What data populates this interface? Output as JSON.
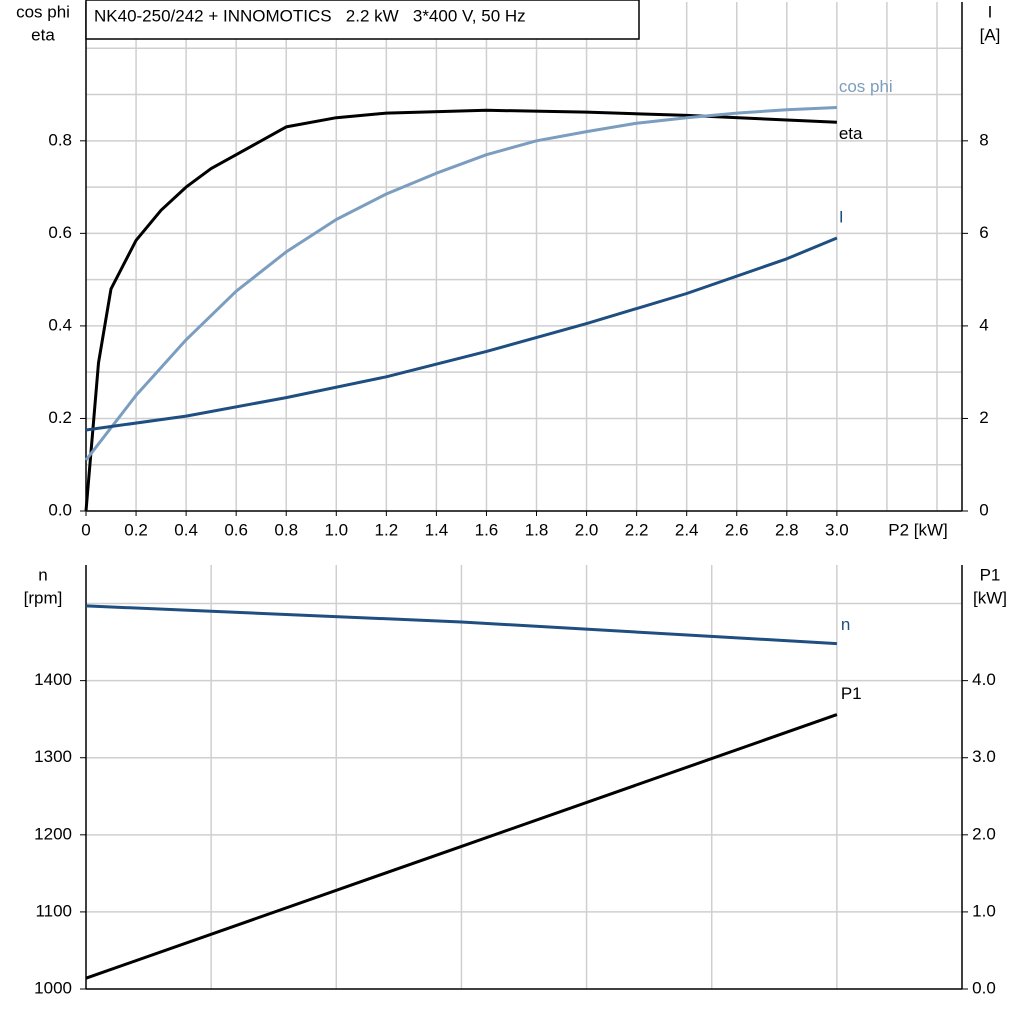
{
  "chart_data": [
    {
      "type": "line",
      "title": "NK40-250/242 + INNOMOTICS   2.2 kW   3*400 V, 50 Hz",
      "x_label": "P2 [kW]",
      "y_label": [
        "cos phi",
        "eta"
      ],
      "y2_label": [
        "I",
        "[A]"
      ],
      "xlim": [
        0,
        3.5
      ],
      "xticks": [
        0,
        0.2,
        0.4,
        0.6,
        0.8,
        {
          "value": 1,
          "label": "1.0"
        },
        1.2,
        1.4,
        1.6,
        1.8,
        {
          "value": 2,
          "label": "2.0"
        },
        2.2,
        2.4,
        2.6,
        2.8,
        {
          "value": 3,
          "label": "3.0"
        }
      ],
      "xgrid": [
        0.2,
        0.4,
        0.6,
        0.8,
        1,
        1.2,
        1.4,
        1.6,
        1.8,
        2,
        2.2,
        2.4,
        2.6,
        2.8,
        3,
        3.2,
        3.4
      ],
      "ylim": [
        0,
        1.1
      ],
      "yticks": [
        {
          "value": 0,
          "label": "0.0"
        },
        0.2,
        0.4,
        0.6,
        0.8
      ],
      "ygrid": [
        0.1,
        0.2,
        0.3,
        0.4,
        0.5,
        0.6,
        0.7,
        0.8,
        0.9,
        1
      ],
      "y2lim": [
        0,
        11
      ],
      "y2ticks": [
        0,
        2,
        4,
        6,
        8
      ],
      "grid": true,
      "series": [
        {
          "name": "eta",
          "color": "#000000",
          "x": [
            0,
            0.05,
            0.1,
            0.2,
            0.3,
            0.4,
            0.5,
            0.6,
            0.8,
            1,
            1.2,
            1.6,
            2,
            2.4,
            2.8,
            3
          ],
          "values": [
            0,
            0.32,
            0.48,
            0.585,
            0.65,
            0.7,
            0.74,
            0.77,
            0.83,
            0.85,
            0.86,
            0.866,
            0.862,
            0.855,
            0.845,
            0.84
          ]
        },
        {
          "name": "cos phi",
          "color": "#7b9dbf",
          "x": [
            0,
            0.2,
            0.4,
            0.6,
            0.8,
            1,
            1.2,
            1.4,
            1.6,
            1.8,
            2,
            2.2,
            2.4,
            2.6,
            2.8,
            3
          ],
          "values": [
            0.11,
            0.25,
            0.37,
            0.475,
            0.56,
            0.63,
            0.685,
            0.73,
            0.77,
            0.8,
            0.82,
            0.838,
            0.85,
            0.86,
            0.867,
            0.872
          ]
        },
        {
          "name": "I",
          "color": "#1f4e80",
          "axis": "y2",
          "x": [
            0,
            0.4,
            0.8,
            1.2,
            1.6,
            2,
            2.4,
            2.8,
            3
          ],
          "values": [
            1.75,
            2.05,
            2.45,
            2.9,
            3.45,
            4.05,
            4.7,
            5.45,
            5.9
          ]
        }
      ]
    },
    {
      "type": "line",
      "y_label": [
        "n",
        "[rpm]"
      ],
      "y2_label": [
        "P1",
        "[kW]"
      ],
      "xlim": [
        0,
        3.5
      ],
      "xgrid": [
        0.5,
        1,
        1.5,
        2,
        2.5,
        3
      ],
      "ylim": [
        1000,
        1550
      ],
      "yticks": [
        1000,
        1100,
        1200,
        1300,
        1400
      ],
      "ygrid": [
        1100,
        1200,
        1300,
        1400,
        1500
      ],
      "y2lim": [
        0,
        5.5
      ],
      "y2ticks": [
        {
          "value": 0,
          "label": "0.0"
        },
        {
          "value": 1,
          "label": "1.0"
        },
        {
          "value": 2,
          "label": "2.0"
        },
        {
          "value": 3,
          "label": "3.0"
        },
        {
          "value": 4,
          "label": "4.0"
        }
      ],
      "grid": true,
      "series": [
        {
          "name": "n",
          "color": "#1f4e80",
          "x": [
            0,
            1.5,
            3
          ],
          "values": [
            1497,
            1476,
            1448
          ]
        },
        {
          "name": "P1",
          "color": "#000000",
          "axis": "y2",
          "x": [
            0,
            1.5,
            3
          ],
          "values": [
            0.14,
            1.85,
            3.56
          ]
        }
      ]
    }
  ]
}
